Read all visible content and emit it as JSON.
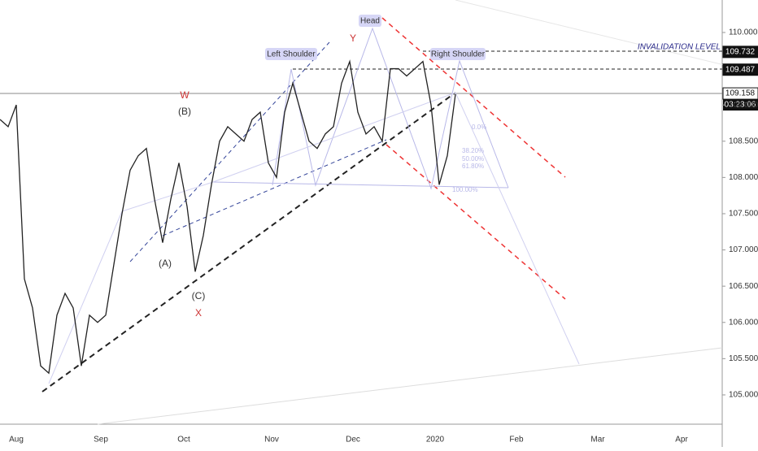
{
  "chart_data": {
    "type": "line",
    "series": [
      {
        "color": "#222222",
        "values": [
          108.8,
          108.7,
          109.0,
          106.6,
          106.2,
          105.4,
          105.3,
          106.1,
          106.4,
          106.2,
          105.4,
          106.1,
          106.0,
          106.1,
          106.8,
          107.5,
          108.1,
          108.3,
          108.4,
          107.7,
          107.1,
          107.7,
          108.2,
          107.6,
          106.7,
          107.2,
          107.9,
          108.5,
          108.7,
          108.6,
          108.5,
          108.8,
          108.9,
          108.2,
          108.0,
          108.9,
          109.3,
          108.9,
          108.5,
          108.4,
          108.6,
          108.7,
          109.3,
          109.6,
          108.9,
          108.6,
          108.7,
          108.5,
          109.5,
          109.5,
          109.4,
          109.5,
          109.6,
          109.0,
          107.9,
          108.3,
          109.15
        ]
      }
    ],
    "x_labels": [
      "Aug",
      "Sep",
      "Oct",
      "Nov",
      "Dec",
      "2020",
      "Feb",
      "Mar",
      "Apr"
    ],
    "ylim": [
      104.596,
      110.448
    ],
    "yticks": [
      {
        "value": 105,
        "label": "105.000"
      },
      {
        "value": 105.5,
        "label": "105.500"
      },
      {
        "value": 106,
        "label": "106.000"
      },
      {
        "value": 106.5,
        "label": "106.500"
      },
      {
        "value": 107,
        "label": "107.000"
      },
      {
        "value": 107.5,
        "label": "107.500"
      },
      {
        "value": 108,
        "label": "108.000"
      },
      {
        "value": 108.5,
        "label": "108.500"
      },
      {
        "value": 109,
        "label": "109.000"
      },
      {
        "value": 109.5,
        "label": "109.500"
      },
      {
        "value": 110,
        "label": "110.000"
      }
    ],
    "price_labels": [
      {
        "value": 109.732,
        "label": "109.732"
      },
      {
        "value": 109.487,
        "label": "109.487"
      },
      {
        "value": 109.158,
        "label": "109.158"
      }
    ],
    "countdown": "03:23:06",
    "annotations": {
      "head": "Head",
      "left_shoulder": "Left Shoulder",
      "right_shoulder": "Right Shoulder",
      "invalidation": "INVALIDATION LEVEL",
      "w": "W",
      "b": "(B)",
      "a": "(A)",
      "c": "(C)",
      "x": "X",
      "y": "Y"
    },
    "fib_labels": [
      "0.0%",
      "38.20%",
      "50.00%",
      "61.80%",
      "100.00%"
    ]
  }
}
